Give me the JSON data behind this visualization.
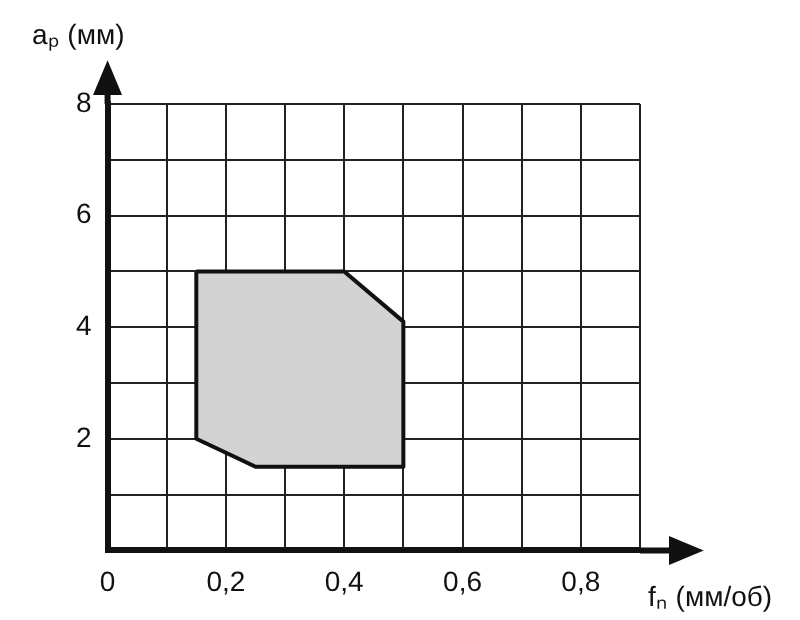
{
  "chart_data": {
    "type": "area",
    "xlabel": "fₙ (мм/об)",
    "ylabel": "aₚ (мм)",
    "series": [
      {
        "color": "#d3d3d3",
        "x": [
          0.15,
          0.4,
          0.5,
          0.5,
          0.25,
          0.15,
          0.15
        ],
        "values": [
          5,
          5,
          4.1,
          1.5,
          1.5,
          2,
          5
        ]
      }
    ],
    "xlim": [
      0,
      0.9
    ],
    "ylim": [
      0,
      8
    ],
    "xticks": [
      {
        "value": 0,
        "label": "0"
      },
      {
        "value": 0.1,
        "label": null
      },
      {
        "value": 0.2,
        "label": "0,2"
      },
      {
        "value": 0.3,
        "label": null
      },
      {
        "value": 0.4,
        "label": "0,4"
      },
      {
        "value": 0.5,
        "label": null
      },
      {
        "value": 0.6,
        "label": "0,6"
      },
      {
        "value": 0.7,
        "label": null
      },
      {
        "value": 0.8,
        "label": "0,8"
      },
      {
        "value": 0.9,
        "label": null
      }
    ],
    "yticks": [
      {
        "value": 0,
        "label": null
      },
      {
        "value": 1,
        "label": null
      },
      2,
      {
        "value": 3,
        "label": null
      },
      4,
      {
        "value": 5,
        "label": null
      },
      6,
      {
        "value": 7,
        "label": null
      },
      8
    ],
    "grid": true,
    "legend": false
  }
}
